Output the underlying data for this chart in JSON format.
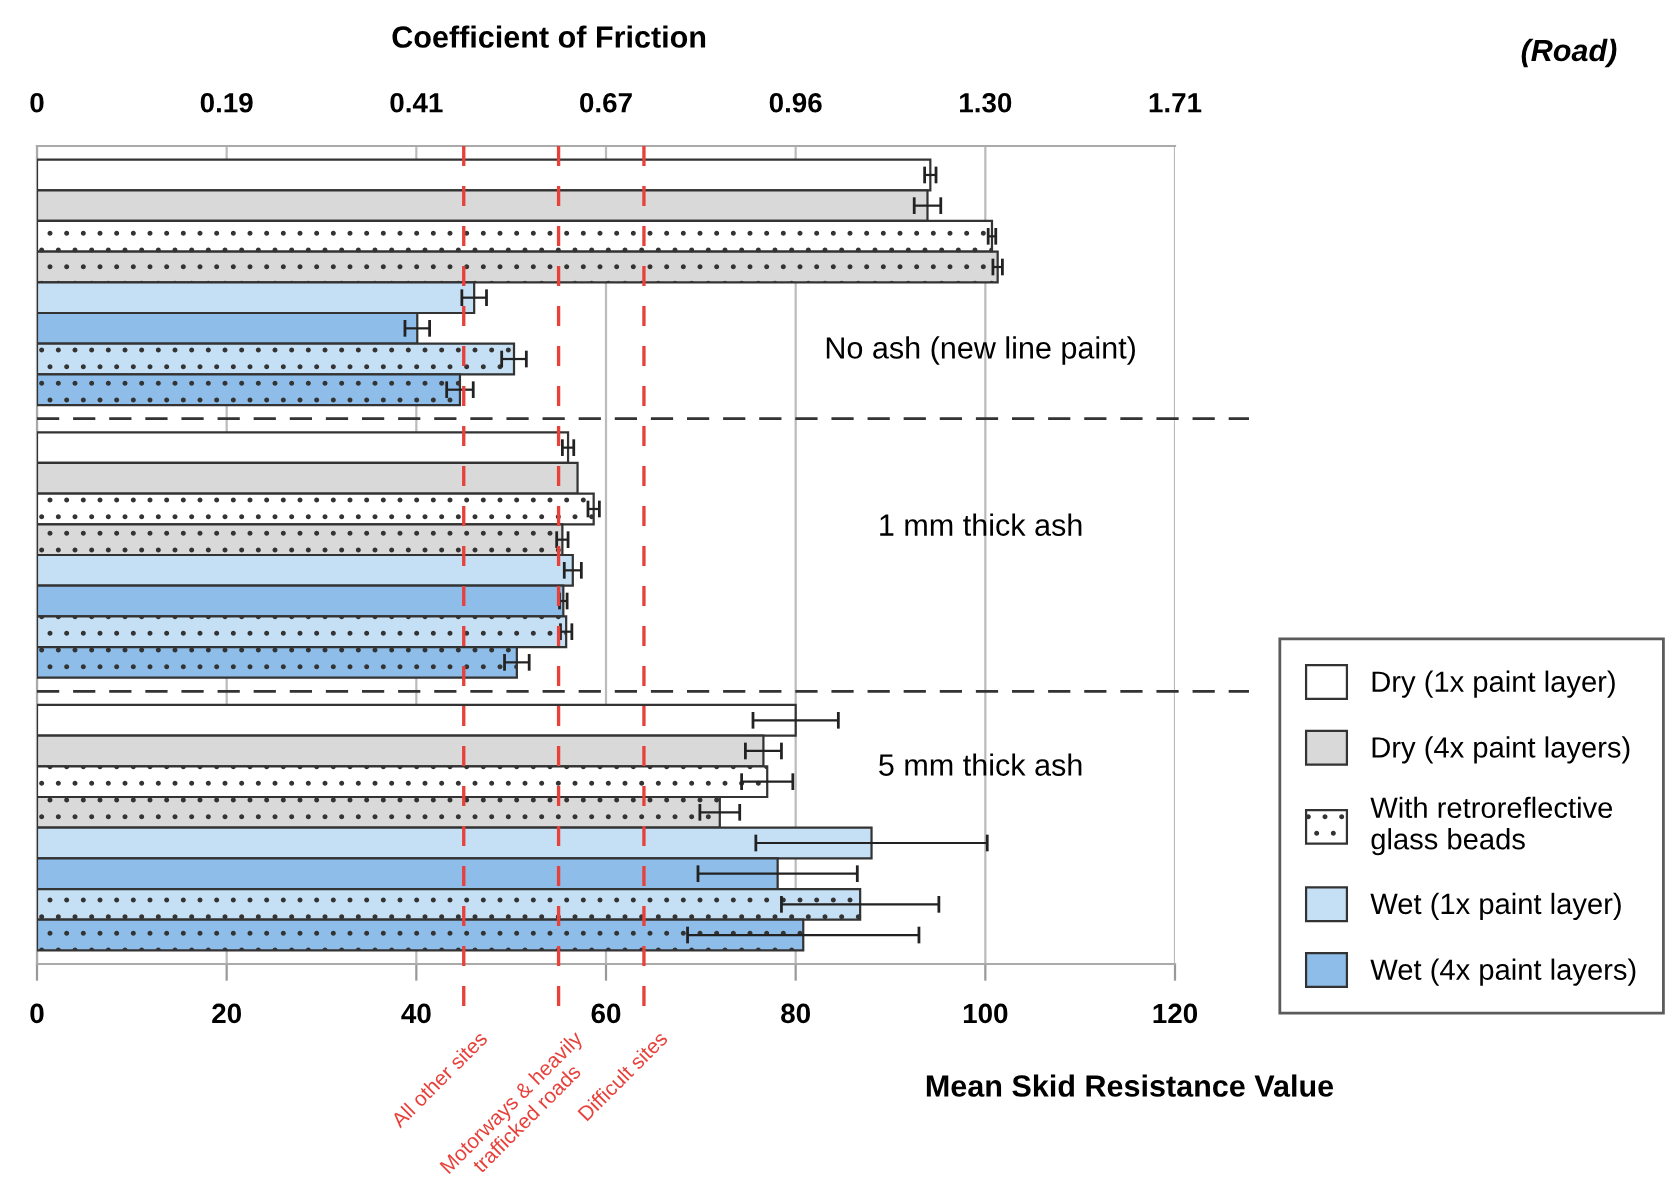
{
  "chart_data": {
    "type": "bar",
    "orientation": "horizontal",
    "x2label": "Coefficient of Friction",
    "xlabel": "Mean Skid Resistance Value",
    "categories": [
      null,
      null,
      null
    ],
    "xlim": [
      0,
      120
    ],
    "xticks": [
      0,
      20,
      40,
      60,
      80,
      100,
      120
    ],
    "grid": "x",
    "legend": "right",
    "series": [
      {
        "name": "Dry (1x paint layer)",
        "color": "#ffffff",
        "values": [
          94.2,
          56.0,
          80.0
        ],
        "errors": [
          0.6,
          0.6,
          4.5
        ]
      },
      {
        "name": "Dry (4x paint layers)",
        "color": "#d9d9d9",
        "values": [
          93.9,
          57.0,
          76.6
        ],
        "errors": [
          1.4,
          null,
          1.9
        ]
      },
      {
        "name": "With retroreflective\nglass beads",
        "color": "#ffffff",
        "marker": "circle",
        "values": [
          100.7,
          58.7,
          77.0
        ],
        "errors": [
          0.4,
          0.6,
          2.7
        ]
      },
      {
        "color": "#d9d9d9",
        "marker": "circle",
        "values": [
          101.3,
          55.4,
          72.0
        ],
        "errors": [
          0.5,
          0.6,
          2.1
        ]
      },
      {
        "name": "Wet (1x paint layer)",
        "color": "#c5e0f4",
        "values": [
          46.1,
          56.5,
          88.0
        ],
        "errors": [
          1.3,
          0.9,
          12.2
        ]
      },
      {
        "name": "Wet (4x paint layers)",
        "color": "#8dbde8",
        "values": [
          40.1,
          55.5,
          78.1
        ],
        "errors": [
          1.3,
          0.4,
          8.4
        ]
      },
      {
        "color": "#c5e0f4",
        "marker": "circle",
        "values": [
          50.3,
          55.8,
          86.8
        ],
        "errors": [
          1.3,
          0.6,
          8.3
        ]
      },
      {
        "color": "#8dbde8",
        "marker": "circle",
        "values": [
          44.6,
          50.6,
          80.8
        ],
        "errors": [
          1.4,
          1.3,
          12.2
        ]
      }
    ],
    "ref_lines": [
      {
        "axis": "x",
        "value": 45,
        "label": "All other sites",
        "color": "#e8403a",
        "line_style": "dashed"
      },
      {
        "axis": "x",
        "value": 55,
        "label": "Motorways & heavily\ntrafficked roads",
        "color": "#e8403a",
        "line_style": "dashed"
      },
      {
        "axis": "x",
        "value": 64,
        "label": "Difficult sites",
        "color": "#e8403a",
        "line_style": "dashed"
      }
    ],
    "annotations": [
      "No ash (new line paint)",
      "1 mm thick ash",
      "5 mm thick ash",
      "(Road)",
      "0",
      "0.19",
      "0.41",
      "0.67",
      "0.96",
      "1.30",
      "1.71"
    ]
  }
}
